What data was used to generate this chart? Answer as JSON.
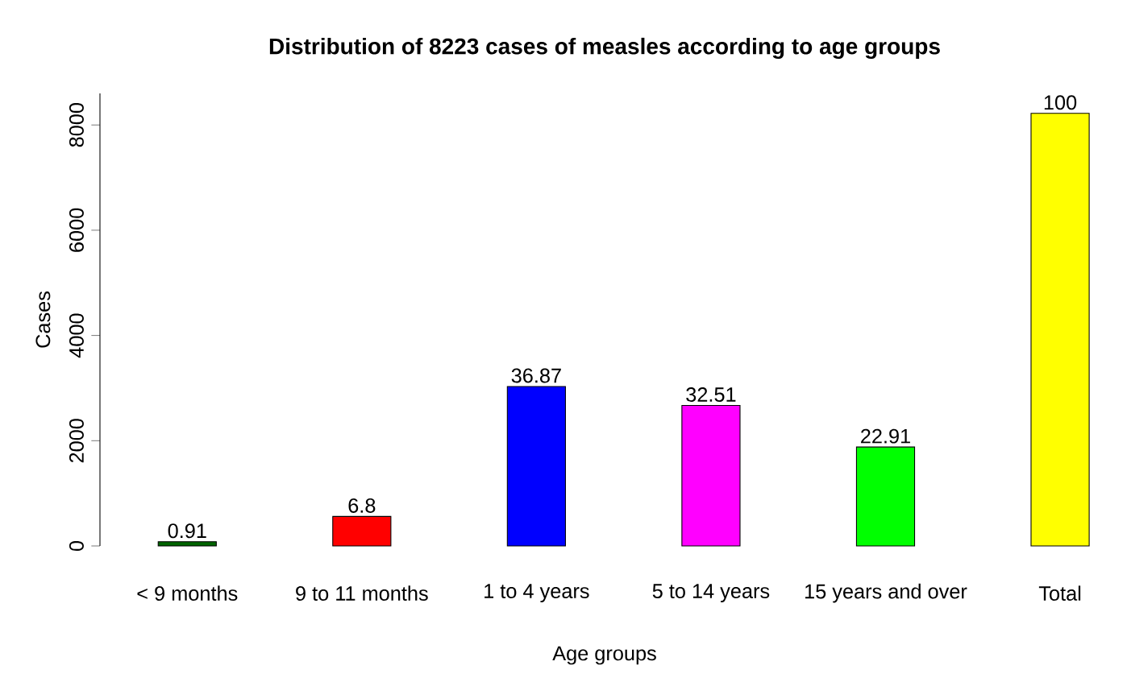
{
  "chart_data": {
    "type": "bar",
    "title": "Distribution of 8223 cases of measles according to age groups",
    "xlabel": "Age groups",
    "ylabel": "Cases",
    "categories": [
      "< 9 months",
      "9 to 11 months",
      "1 to 4 years",
      "5 to 14 years",
      "15 years and over",
      "Total"
    ],
    "values": [
      80,
      560,
      3030,
      2670,
      1880,
      8220
    ],
    "colors": [
      "#006400",
      "#ff0000",
      "#0000ff",
      "#ff00ff",
      "#00ff00",
      "#ffff00"
    ],
    "annotations": [
      {
        "text": "0.91",
        "x": "< 9 months",
        "y": 80
      },
      {
        "text": "6.8",
        "x": "9 to 11 months",
        "y": 560
      },
      {
        "text": "36.87",
        "x": "1 to 4 years",
        "y": 3030
      },
      {
        "text": "32.51",
        "x": "5 to 14 years",
        "y": 2670
      },
      {
        "text": "22.91",
        "x": "15 years and over",
        "y": 1880
      },
      {
        "text": "100",
        "x": "Total",
        "y": 8220
      }
    ],
    "ylim": [
      0,
      8600
    ],
    "yticks": [
      0,
      2000,
      4000,
      6000,
      8000
    ],
    "grid": false
  }
}
